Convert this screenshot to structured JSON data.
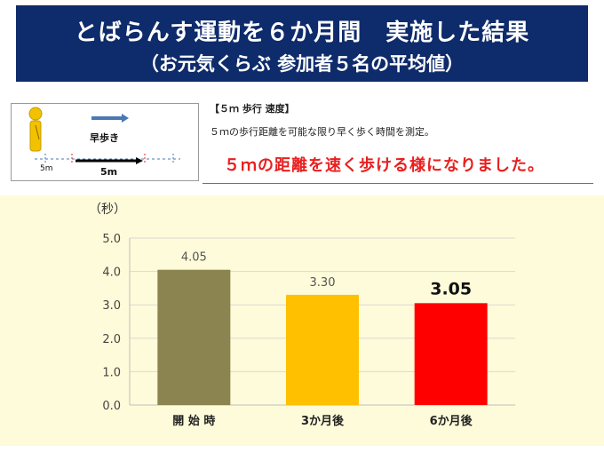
{
  "header": {
    "title": "とばらんす運動を６か月間　実施した結果",
    "subtitle": "（お元気くらぶ 参加者５名の平均値）"
  },
  "diagram": {
    "walk_label": "早歩き",
    "start_label": "5m",
    "distance_label": "5m",
    "figure_color": "#f2c200",
    "arrow_color": "#4a78b5"
  },
  "info": {
    "heading": "【５ｍ 歩行 速度】",
    "description": "５ｍの歩行距離を可能な限り早く歩く時間を測定。",
    "result": "５ｍの距離を速く歩ける様になりました。"
  },
  "chart_data": {
    "type": "bar",
    "categories": [
      "開 始 時",
      "3か月後",
      "6か月後"
    ],
    "values": [
      4.05,
      3.3,
      3.05
    ],
    "value_labels": [
      "4.05",
      "3.30",
      "3.05"
    ],
    "ylabel": "（秒）",
    "ylim": [
      0,
      5
    ],
    "yticks": [
      "0.0",
      "1.0",
      "2.0",
      "3.0",
      "4.0",
      "5.0"
    ],
    "ytick_values": [
      0,
      1,
      2,
      3,
      4,
      5
    ],
    "colors": [
      "#8c8450",
      "#ffc000",
      "#ff0000"
    ],
    "grid": true,
    "highlight_last": true
  }
}
